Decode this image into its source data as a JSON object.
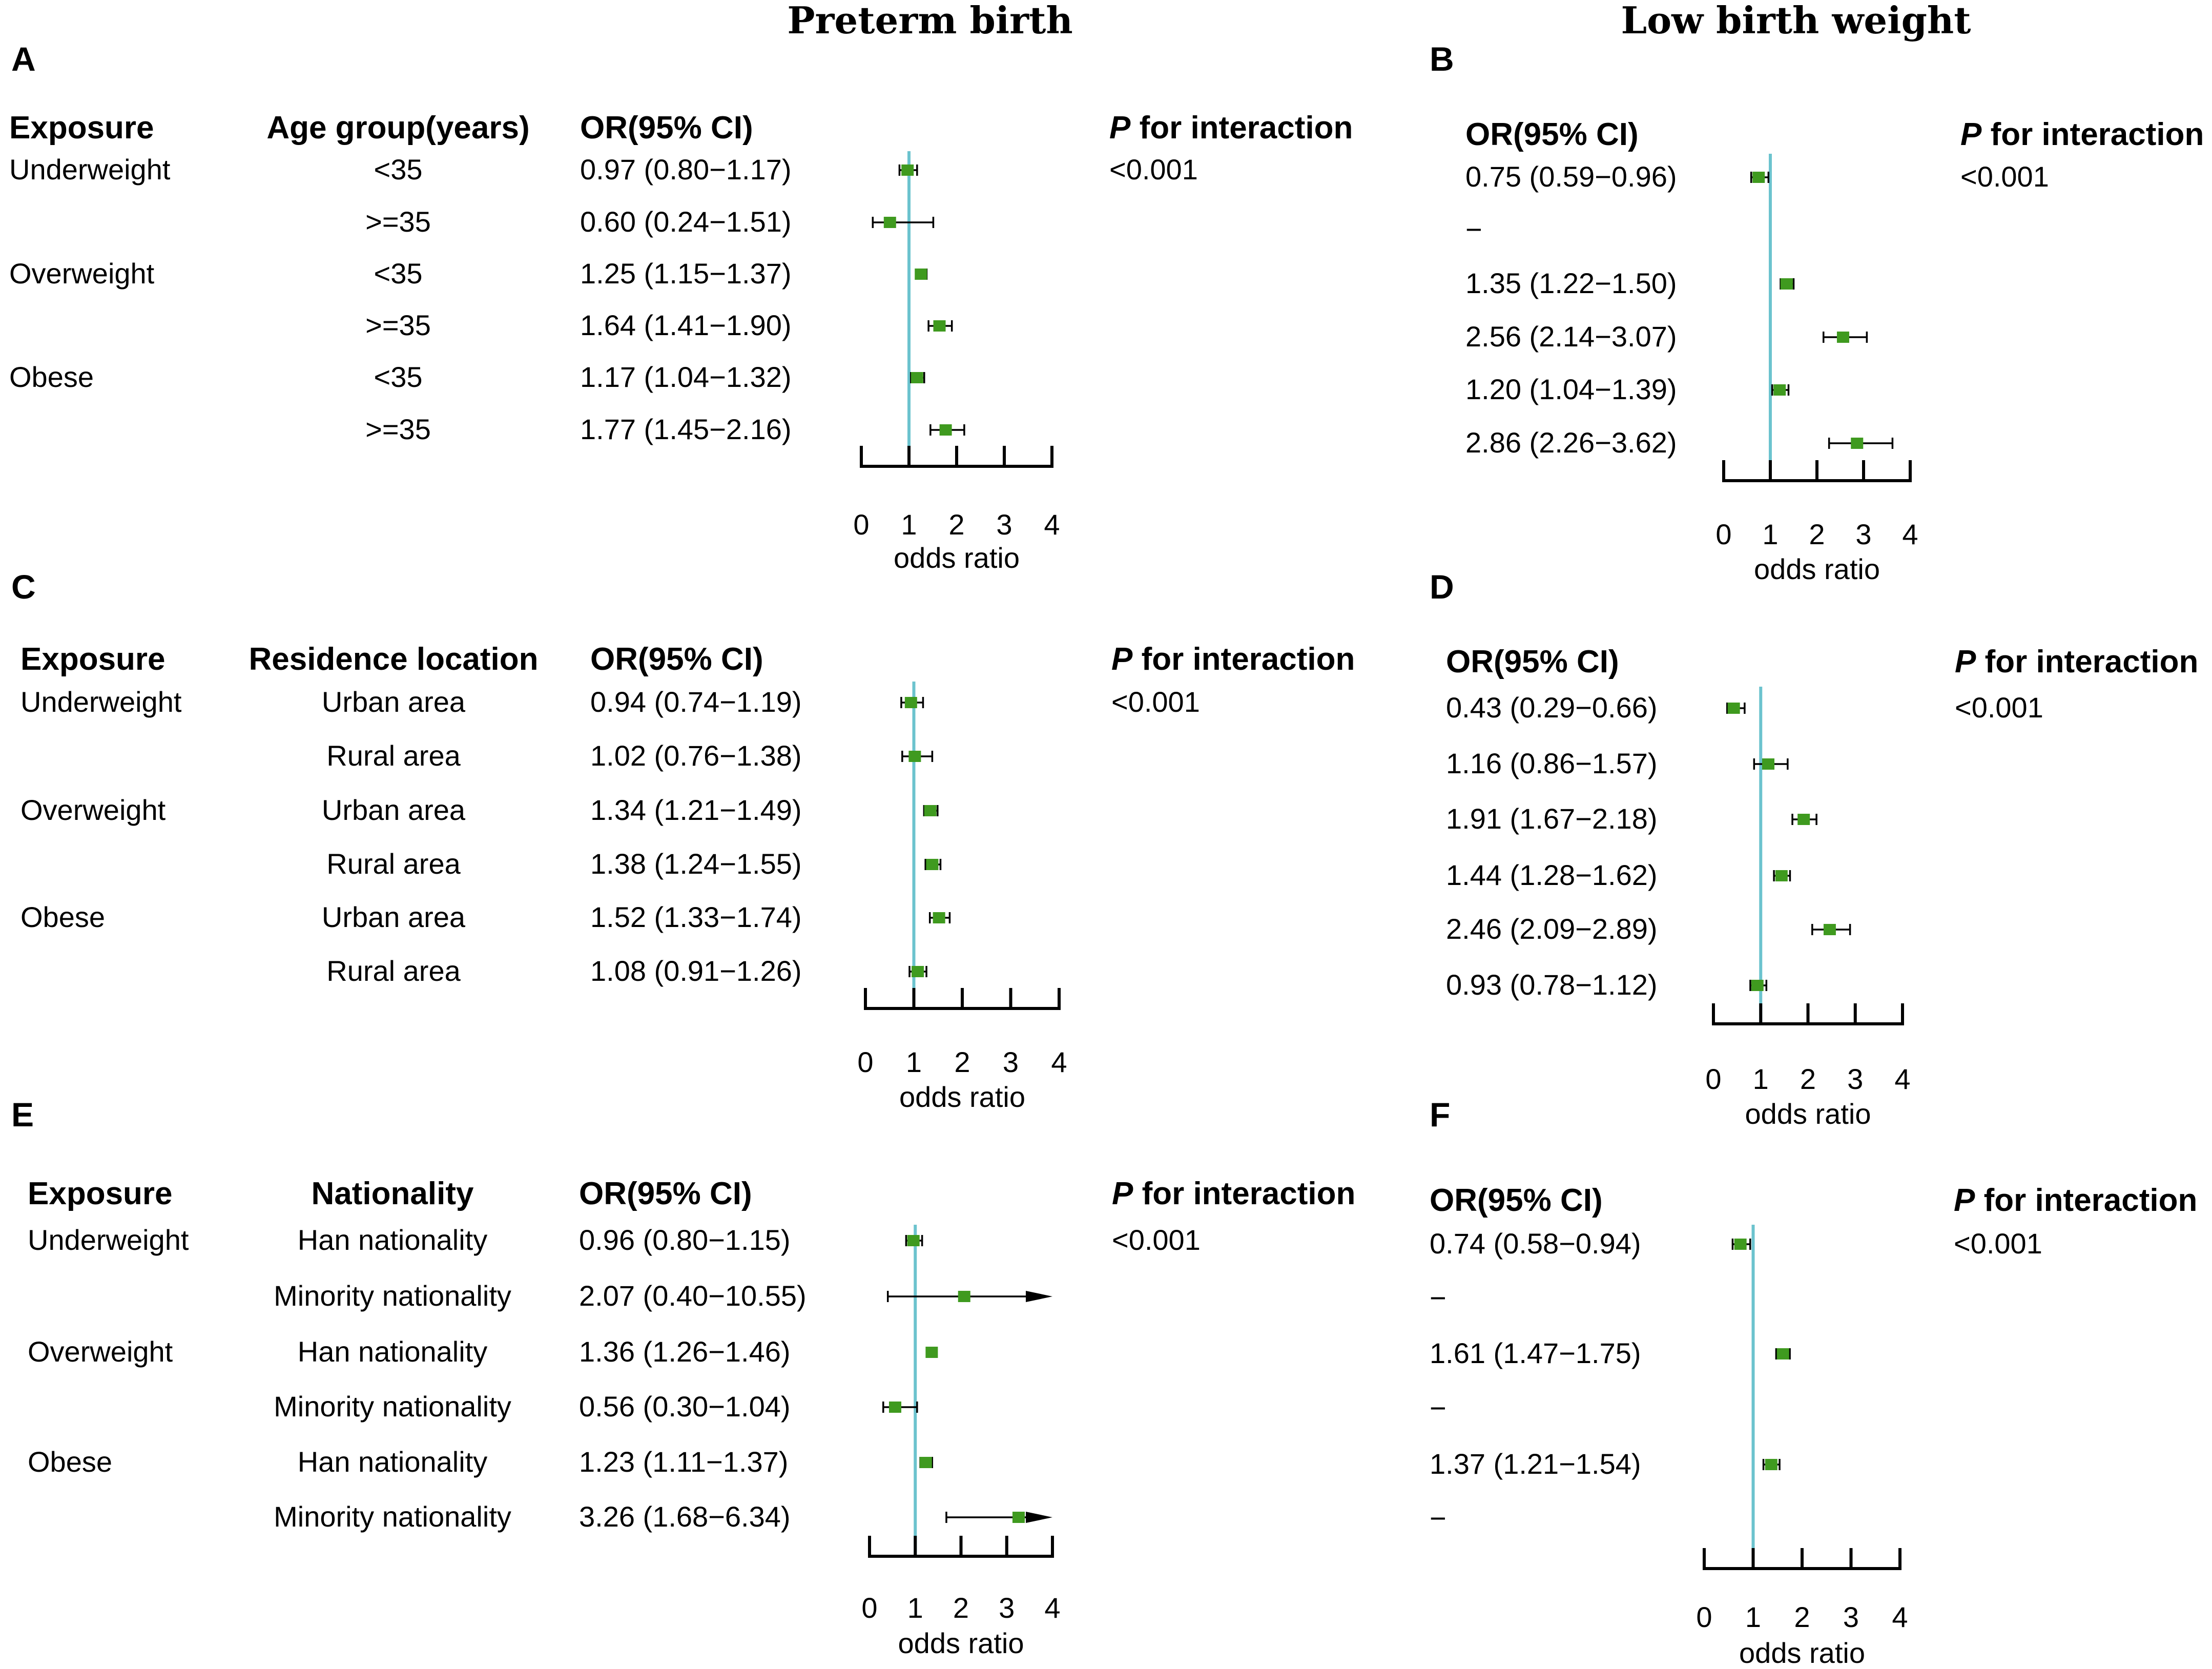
{
  "section_titles": {
    "left": "Preterm birth",
    "right": "Low birth weight"
  },
  "colors": {
    "reference_line": "#6cc3ce",
    "marker": "#3f9a1f",
    "whisker": "#000000"
  },
  "headers": {
    "exposure": "Exposure",
    "or": "OR(95% CI)",
    "p_italic": "P",
    "p_rest": " for interaction"
  },
  "chart_data": [
    {
      "panel": "A",
      "type": "forest",
      "outcome": "Preterm birth",
      "group_header": "Age group(years)",
      "p_value": "<0.001",
      "xlabel": "odds ratio",
      "xlim": [
        0,
        4
      ],
      "xticks": [
        0,
        1,
        2,
        3,
        4
      ],
      "reference": 1,
      "rows": [
        {
          "exposure": "Underweight",
          "group": "<35",
          "or_text": "0.97 (0.80−1.17)",
          "or": 0.97,
          "lo": 0.8,
          "hi": 1.17
        },
        {
          "exposure": "",
          "group": ">=35",
          "or_text": "0.60 (0.24−1.51)",
          "or": 0.6,
          "lo": 0.24,
          "hi": 1.51
        },
        {
          "exposure": "Overweight",
          "group": "<35",
          "or_text": "1.25 (1.15−1.37)",
          "or": 1.25,
          "lo": 1.15,
          "hi": 1.37
        },
        {
          "exposure": "",
          "group": ">=35",
          "or_text": "1.64 (1.41−1.90)",
          "or": 1.64,
          "lo": 1.41,
          "hi": 1.9
        },
        {
          "exposure": "Obese",
          "group": "<35",
          "or_text": "1.17 (1.04−1.32)",
          "or": 1.17,
          "lo": 1.04,
          "hi": 1.32
        },
        {
          "exposure": "",
          "group": ">=35",
          "or_text": "1.77 (1.45−2.16)",
          "or": 1.77,
          "lo": 1.45,
          "hi": 2.16
        }
      ]
    },
    {
      "panel": "B",
      "type": "forest",
      "outcome": "Low birth weight",
      "p_value": "<0.001",
      "xlabel": "odds ratio",
      "xlim": [
        0,
        4
      ],
      "xticks": [
        0,
        1,
        2,
        3,
        4
      ],
      "reference": 1,
      "rows": [
        {
          "or_text": "0.75 (0.59−0.96)",
          "or": 0.75,
          "lo": 0.59,
          "hi": 0.96
        },
        {
          "or_text": "−",
          "or": null,
          "lo": null,
          "hi": null
        },
        {
          "or_text": "1.35 (1.22−1.50)",
          "or": 1.35,
          "lo": 1.22,
          "hi": 1.5
        },
        {
          "or_text": "2.56 (2.14−3.07)",
          "or": 2.56,
          "lo": 2.14,
          "hi": 3.07
        },
        {
          "or_text": "1.20 (1.04−1.39)",
          "or": 1.2,
          "lo": 1.04,
          "hi": 1.39
        },
        {
          "or_text": "2.86 (2.26−3.62)",
          "or": 2.86,
          "lo": 2.26,
          "hi": 3.62
        }
      ]
    },
    {
      "panel": "C",
      "type": "forest",
      "outcome": "Preterm birth",
      "group_header": "Residence location",
      "p_value": "<0.001",
      "xlabel": "odds ratio",
      "xlim": [
        0,
        4
      ],
      "xticks": [
        0,
        1,
        2,
        3,
        4
      ],
      "reference": 1,
      "rows": [
        {
          "exposure": "Underweight",
          "group": "Urban area",
          "or_text": "0.94 (0.74−1.19)",
          "or": 0.94,
          "lo": 0.74,
          "hi": 1.19
        },
        {
          "exposure": "",
          "group": "Rural area",
          "or_text": "1.02 (0.76−1.38)",
          "or": 1.02,
          "lo": 0.76,
          "hi": 1.38
        },
        {
          "exposure": "Overweight",
          "group": "Urban area",
          "or_text": "1.34 (1.21−1.49)",
          "or": 1.34,
          "lo": 1.21,
          "hi": 1.49
        },
        {
          "exposure": "",
          "group": "Rural area",
          "or_text": "1.38 (1.24−1.55)",
          "or": 1.38,
          "lo": 1.24,
          "hi": 1.55
        },
        {
          "exposure": "Obese",
          "group": "Urban area",
          "or_text": "1.52 (1.33−1.74)",
          "or": 1.52,
          "lo": 1.33,
          "hi": 1.74
        },
        {
          "exposure": "",
          "group": "Rural area",
          "or_text": "1.08 (0.91−1.26)",
          "or": 1.08,
          "lo": 0.91,
          "hi": 1.26
        }
      ]
    },
    {
      "panel": "D",
      "type": "forest",
      "outcome": "Low birth weight",
      "p_value": "<0.001",
      "xlabel": "odds ratio",
      "xlim": [
        0,
        4
      ],
      "xticks": [
        0,
        1,
        2,
        3,
        4
      ],
      "reference": 1,
      "rows": [
        {
          "or_text": "0.43 (0.29−0.66)",
          "or": 0.43,
          "lo": 0.29,
          "hi": 0.66
        },
        {
          "or_text": "1.16 (0.86−1.57)",
          "or": 1.16,
          "lo": 0.86,
          "hi": 1.57
        },
        {
          "or_text": "1.91 (1.67−2.18)",
          "or": 1.91,
          "lo": 1.67,
          "hi": 2.18
        },
        {
          "or_text": "1.44 (1.28−1.62)",
          "or": 1.44,
          "lo": 1.28,
          "hi": 1.62
        },
        {
          "or_text": "2.46 (2.09−2.89)",
          "or": 2.46,
          "lo": 2.09,
          "hi": 2.89
        },
        {
          "or_text": "0.93 (0.78−1.12)",
          "or": 0.93,
          "lo": 0.78,
          "hi": 1.12
        }
      ]
    },
    {
      "panel": "E",
      "type": "forest",
      "outcome": "Preterm birth",
      "group_header": "Nationality",
      "p_value": "<0.001",
      "xlabel": "odds ratio",
      "xlim": [
        0,
        4
      ],
      "xticks": [
        0,
        1,
        2,
        3,
        4
      ],
      "reference": 1,
      "rows": [
        {
          "exposure": "Underweight",
          "group": "Han nationality",
          "or_text": "0.96 (0.80−1.15)",
          "or": 0.96,
          "lo": 0.8,
          "hi": 1.15
        },
        {
          "exposure": "",
          "group": "Minority nationality",
          "or_text": "2.07 (0.40−10.55)",
          "or": 2.07,
          "lo": 0.4,
          "hi": 10.55
        },
        {
          "exposure": "Overweight",
          "group": "Han nationality",
          "or_text": "1.36 (1.26−1.46)",
          "or": 1.36,
          "lo": 1.26,
          "hi": 1.46
        },
        {
          "exposure": "",
          "group": "Minority nationality",
          "or_text": "0.56 (0.30−1.04)",
          "or": 0.56,
          "lo": 0.3,
          "hi": 1.04
        },
        {
          "exposure": "Obese",
          "group": "Han nationality",
          "or_text": "1.23 (1.11−1.37)",
          "or": 1.23,
          "lo": 1.11,
          "hi": 1.37
        },
        {
          "exposure": "",
          "group": "Minority nationality",
          "or_text": "3.26 (1.68−6.34)",
          "or": 3.26,
          "lo": 1.68,
          "hi": 6.34
        }
      ]
    },
    {
      "panel": "F",
      "type": "forest",
      "outcome": "Low birth weight",
      "p_value": "<0.001",
      "xlabel": "odds ratio",
      "xlim": [
        0,
        4
      ],
      "xticks": [
        0,
        1,
        2,
        3,
        4
      ],
      "reference": 1,
      "rows": [
        {
          "or_text": "0.74 (0.58−0.94)",
          "or": 0.74,
          "lo": 0.58,
          "hi": 0.94
        },
        {
          "or_text": "−",
          "or": null,
          "lo": null,
          "hi": null
        },
        {
          "or_text": "1.61 (1.47−1.75)",
          "or": 1.61,
          "lo": 1.47,
          "hi": 1.75
        },
        {
          "or_text": "−",
          "or": null,
          "lo": null,
          "hi": null
        },
        {
          "or_text": "1.37 (1.21−1.54)",
          "or": 1.37,
          "lo": 1.21,
          "hi": 1.54
        },
        {
          "or_text": "−",
          "or": null,
          "lo": null,
          "hi": null
        }
      ]
    }
  ]
}
